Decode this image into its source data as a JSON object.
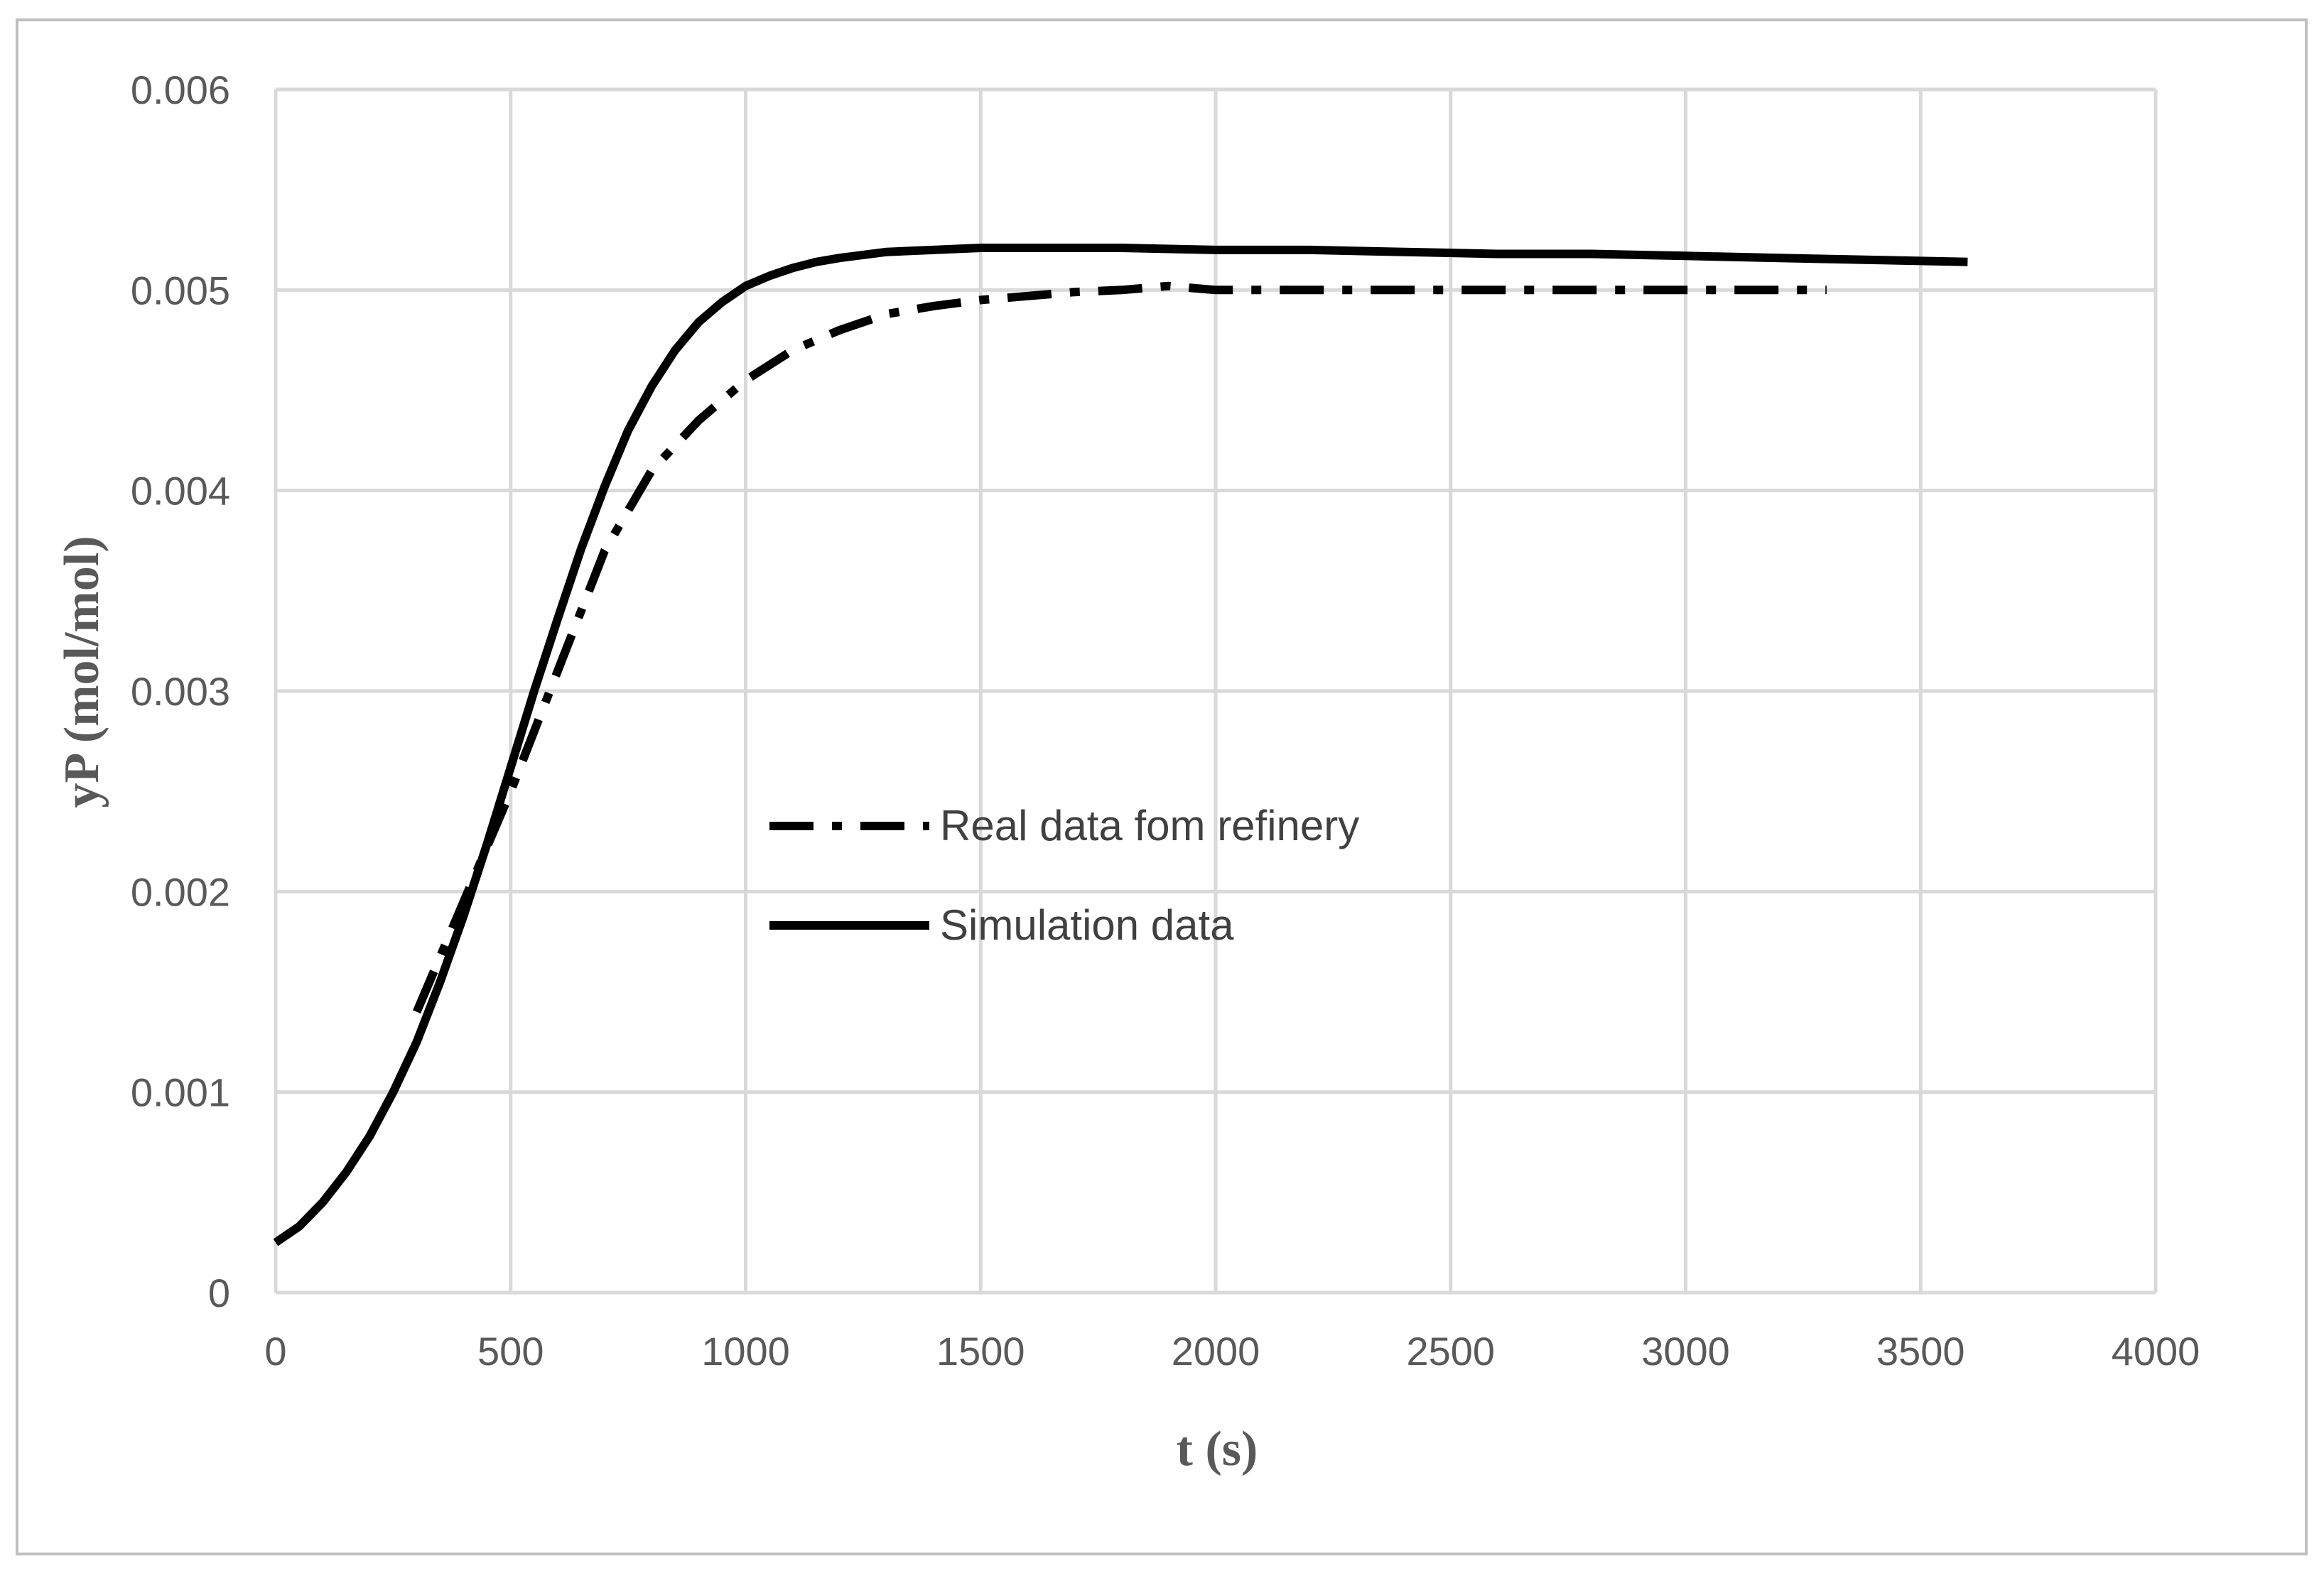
{
  "chart_data": {
    "type": "line",
    "title": "",
    "xlabel": "t (s)",
    "ylabel": "yP (mol/mol)",
    "xlim": [
      0,
      4000
    ],
    "ylim": [
      0,
      0.006
    ],
    "x_ticks": [
      0,
      500,
      1000,
      1500,
      2000,
      2500,
      3000,
      3500,
      4000
    ],
    "x_tick_labels": [
      "0",
      "500",
      "1000",
      "1500",
      "2000",
      "2500",
      "3000",
      "3500",
      "4000"
    ],
    "y_ticks": [
      0,
      0.001,
      0.002,
      0.003,
      0.004,
      0.005,
      0.006
    ],
    "y_tick_labels": [
      "0",
      "0.001",
      "0.002",
      "0.003",
      "0.004",
      "0.005",
      "0.006"
    ],
    "grid": true,
    "legend_position": "center",
    "colors": {
      "series": "#000000",
      "grid": "#d9d9d9",
      "border": "#bfbfbf",
      "text": "#595959"
    },
    "series": [
      {
        "name": "Real data fom refinery",
        "style": "dash-dot",
        "x": [
          300,
          400,
          500,
          600,
          700,
          800,
          900,
          1000,
          1100,
          1200,
          1300,
          1400,
          1500,
          1600,
          1700,
          1800,
          1900,
          2000,
          2100,
          2200,
          2300,
          2400,
          2500,
          2600,
          2700,
          2800,
          2900,
          3000,
          3100,
          3200,
          3300
        ],
        "y": [
          0.0014,
          0.00195,
          0.0025,
          0.0031,
          0.0037,
          0.0041,
          0.00435,
          0.00455,
          0.0047,
          0.0048,
          0.00488,
          0.00492,
          0.00495,
          0.00497,
          0.00499,
          0.005,
          0.00502,
          0.005,
          0.005,
          0.005,
          0.005,
          0.005,
          0.005,
          0.005,
          0.005,
          0.005,
          0.005,
          0.005,
          0.005,
          0.005,
          0.005
        ]
      },
      {
        "name": "Simulation data",
        "style": "solid",
        "x": [
          0,
          50,
          100,
          150,
          200,
          250,
          300,
          350,
          400,
          450,
          500,
          550,
          600,
          650,
          700,
          750,
          800,
          850,
          900,
          950,
          1000,
          1050,
          1100,
          1150,
          1200,
          1300,
          1400,
          1500,
          1600,
          1700,
          1800,
          2000,
          2200,
          2400,
          2600,
          2800,
          3000,
          3200,
          3400,
          3600
        ],
        "y": [
          0.00025,
          0.00033,
          0.00045,
          0.0006,
          0.00078,
          0.001,
          0.00125,
          0.00155,
          0.00188,
          0.00224,
          0.00262,
          0.003,
          0.00336,
          0.00371,
          0.00402,
          0.0043,
          0.00452,
          0.0047,
          0.00484,
          0.00494,
          0.00502,
          0.00507,
          0.00511,
          0.00514,
          0.00516,
          0.00519,
          0.0052,
          0.00521,
          0.00521,
          0.00521,
          0.00521,
          0.0052,
          0.0052,
          0.00519,
          0.00518,
          0.00518,
          0.00517,
          0.00516,
          0.00515,
          0.00514
        ]
      }
    ]
  }
}
